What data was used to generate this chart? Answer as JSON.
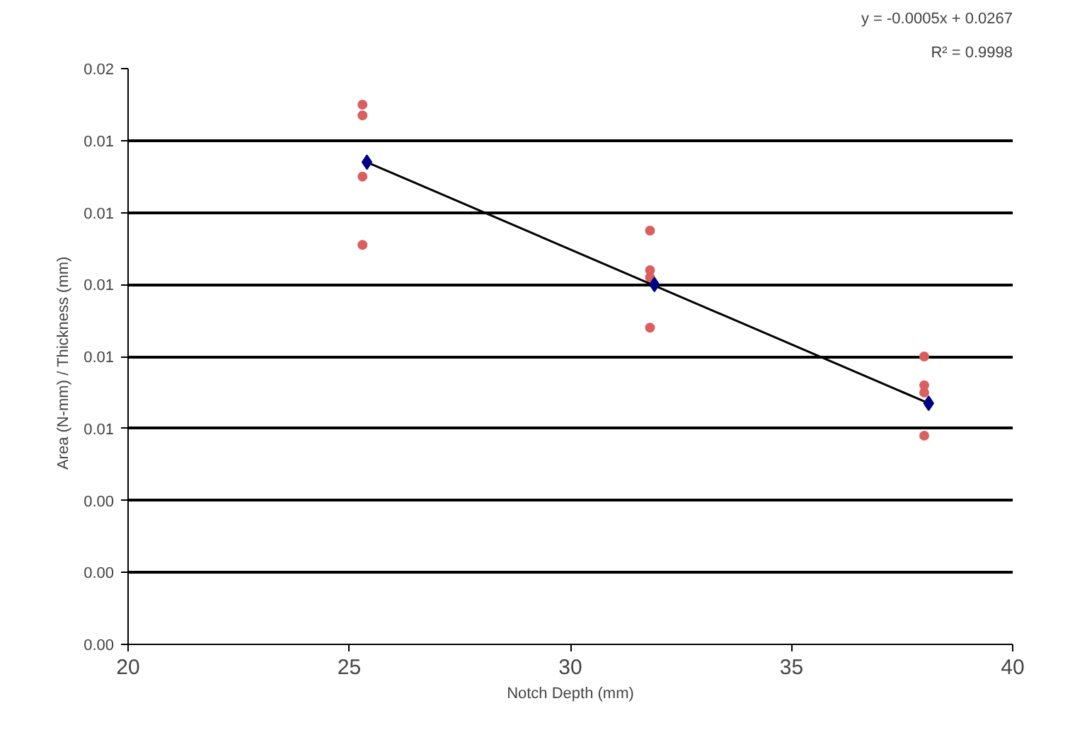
{
  "chart_data": {
    "type": "scatter",
    "xlabel": "Notch Depth (mm)",
    "ylabel": "Area  (N-mm)  / Thickness  (mm)",
    "annotations": [
      "y = -0.0005x + 0.0267",
      "R² = 0.9998"
    ],
    "xlim": [
      20,
      40
    ],
    "xticks": [
      20,
      25,
      30,
      35,
      40
    ],
    "ylim": [
      0,
      0.016
    ],
    "yticks": [
      {
        "value": 0,
        "label": "0.00"
      },
      {
        "value": 0.002,
        "label": "0.00"
      },
      {
        "value": 0.004,
        "label": "0.00"
      },
      {
        "value": 0.006,
        "label": "0.01"
      },
      {
        "value": 0.008,
        "label": "0.01"
      },
      {
        "value": 0.01,
        "label": "0.01"
      },
      {
        "value": 0.012,
        "label": "0.01"
      },
      {
        "value": 0.014,
        "label": "0.01"
      },
      {
        "value": 0.016,
        "label": "0.02"
      }
    ],
    "grid": "y",
    "series": [
      {
        "marker": "circle",
        "color": "#d96060",
        "x": [
          25.3,
          25.3,
          25.3,
          25.3,
          31.8,
          31.8,
          31.8,
          31.8,
          38.0,
          38.0,
          38.0,
          38.0
        ],
        "values": [
          0.015,
          0.0147,
          0.013,
          0.0111,
          0.0115,
          0.0104,
          0.0102,
          0.0088,
          0.008,
          0.0072,
          0.007,
          0.0058
        ]
      },
      {
        "type": "line",
        "marker": "none",
        "color": "#000000",
        "x": [
          25.4,
          38.1
        ],
        "values": [
          0.0134,
          0.0067
        ]
      },
      {
        "marker": "diamond",
        "color": "#000080",
        "x": [
          25.4,
          31.9,
          38.1
        ],
        "values": [
          0.0134,
          0.01,
          0.0067
        ]
      }
    ]
  }
}
